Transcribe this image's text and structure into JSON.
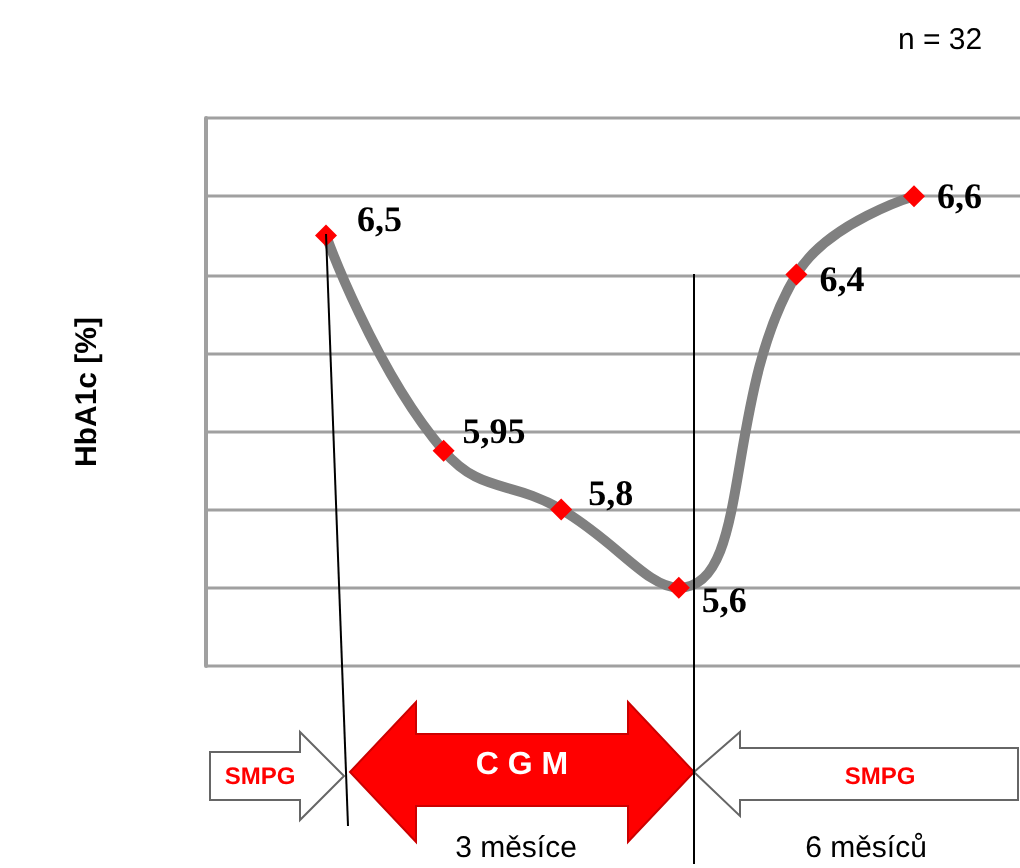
{
  "chart_data": {
    "type": "line",
    "ylabel": "HbA1c [%]",
    "categories": [
      null,
      null,
      null,
      null,
      null,
      null
    ],
    "series": [
      {
        "color": "#808080",
        "colors": [
          "#ff0000",
          "#ff0000",
          "#ff0000",
          "#ff0000",
          "#ff0000",
          "#ff0000"
        ],
        "values": [
          6.5,
          5.95,
          5.8,
          5.6,
          6.4,
          6.6
        ],
        "value_labels": [
          "6,5",
          "5,95",
          "5,8",
          "5,6",
          "6,4",
          "6,6"
        ]
      }
    ],
    "ylim": [
      5.4,
      6.8
    ],
    "yticks": [
      {
        "value": 5.4,
        "label": null
      },
      {
        "value": 5.6,
        "label": null
      },
      {
        "value": 5.8,
        "label": null
      },
      {
        "value": 6.0,
        "label": null
      },
      {
        "value": 6.2,
        "label": null
      },
      {
        "value": 6.4,
        "label": null
      },
      {
        "value": 6.6,
        "label": null
      },
      {
        "value": 6.8,
        "label": null
      }
    ],
    "grid": "y",
    "marker": "diamond",
    "line_style": "solid",
    "annotations": [
      "n = 32",
      "SMPG",
      "C G M",
      "SMPG",
      "3 měsíce",
      "6 měsíců"
    ]
  }
}
